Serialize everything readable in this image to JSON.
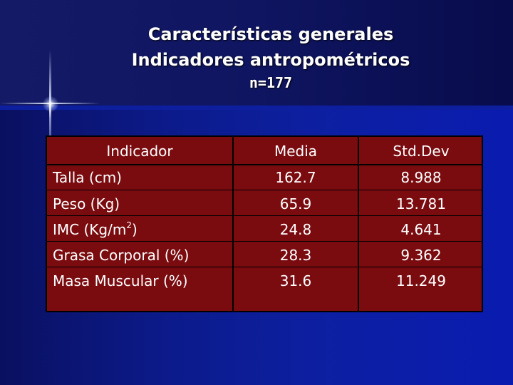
{
  "title": {
    "line1": "Características generales",
    "line2": "Indicadores antropométricos",
    "sample": "n=177"
  },
  "table": {
    "headers": [
      "Indicador",
      "Media",
      "Std.Dev"
    ],
    "rows": [
      {
        "label": "Talla (cm)",
        "media": "162.7",
        "std": "8.988"
      },
      {
        "label": "Peso (Kg)",
        "media": "65.9",
        "std": "13.781"
      },
      {
        "label_base": "IMC (Kg/m",
        "label_sup": "2",
        "label_end": ")",
        "media": "24.8",
        "std": "4.641"
      },
      {
        "label": "Grasa Corporal (%)",
        "media": "28.3",
        "std": "9.362"
      },
      {
        "label": "Masa Muscular (%)",
        "media": "31.6",
        "std": "11.249"
      }
    ]
  },
  "colors": {
    "background": "#0a0f5c",
    "table_fill": "#7a0c10",
    "text": "#ffffff"
  }
}
